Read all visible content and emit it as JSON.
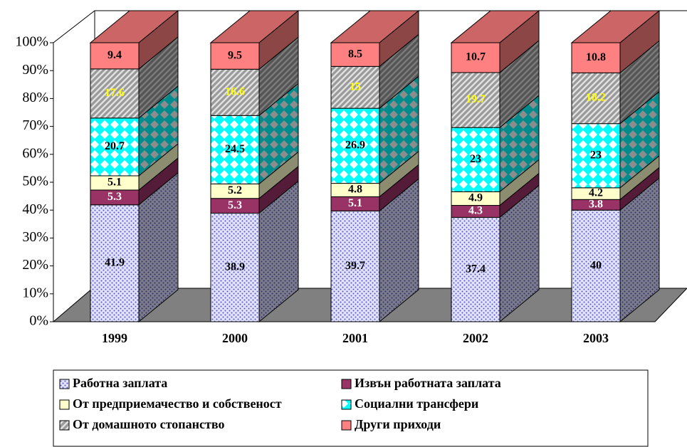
{
  "chart_data": {
    "type": "bar3d_stacked",
    "categories": [
      "1999",
      "2000",
      "2001",
      "2002",
      "2003"
    ],
    "series": [
      {
        "name": "Работна заплата",
        "color": "#e0e0ff",
        "pattern": "dots",
        "label_color": "#000000",
        "values": [
          41.9,
          38.9,
          39.7,
          37.4,
          40
        ]
      },
      {
        "name": "Извън работната заплата",
        "color": "#993366",
        "pattern": "solid",
        "label_color": "#ffffff",
        "values": [
          5.3,
          5.3,
          5.1,
          4.3,
          3.8
        ]
      },
      {
        "name": "От предприемачество и собственост",
        "color": "#ffffcc",
        "pattern": "solid",
        "label_color": "#000000",
        "values": [
          5.1,
          5.2,
          4.8,
          4.9,
          4.2
        ]
      },
      {
        "name": "Социални трансфери",
        "color": "#00ffff",
        "pattern": "checker",
        "label_color": "#000000",
        "values": [
          20.7,
          24.5,
          26.9,
          23,
          23
        ]
      },
      {
        "name": "От домашното стопанство",
        "color": "#999999",
        "pattern": "stripes",
        "label_color": "#ffff00",
        "values": [
          17.6,
          16.6,
          15,
          19.7,
          18.2
        ]
      },
      {
        "name": "Други приходи",
        "color": "#ff8080",
        "pattern": "solid",
        "label_color": "#000000",
        "values": [
          9.4,
          9.5,
          8.5,
          10.7,
          10.8
        ]
      }
    ],
    "ylim": [
      0,
      100
    ],
    "yticks": [
      {
        "value": 0,
        "label": "0%"
      },
      {
        "value": 10,
        "label": "10%"
      },
      {
        "value": 20,
        "label": "20%"
      },
      {
        "value": 30,
        "label": "30%"
      },
      {
        "value": 40,
        "label": "40%"
      },
      {
        "value": 50,
        "label": "50%"
      },
      {
        "value": 60,
        "label": "60%"
      },
      {
        "value": 70,
        "label": "70%"
      },
      {
        "value": 80,
        "label": "80%"
      },
      {
        "value": 90,
        "label": "90%"
      },
      {
        "value": 100,
        "label": "100%"
      }
    ],
    "legend": "bottom"
  }
}
